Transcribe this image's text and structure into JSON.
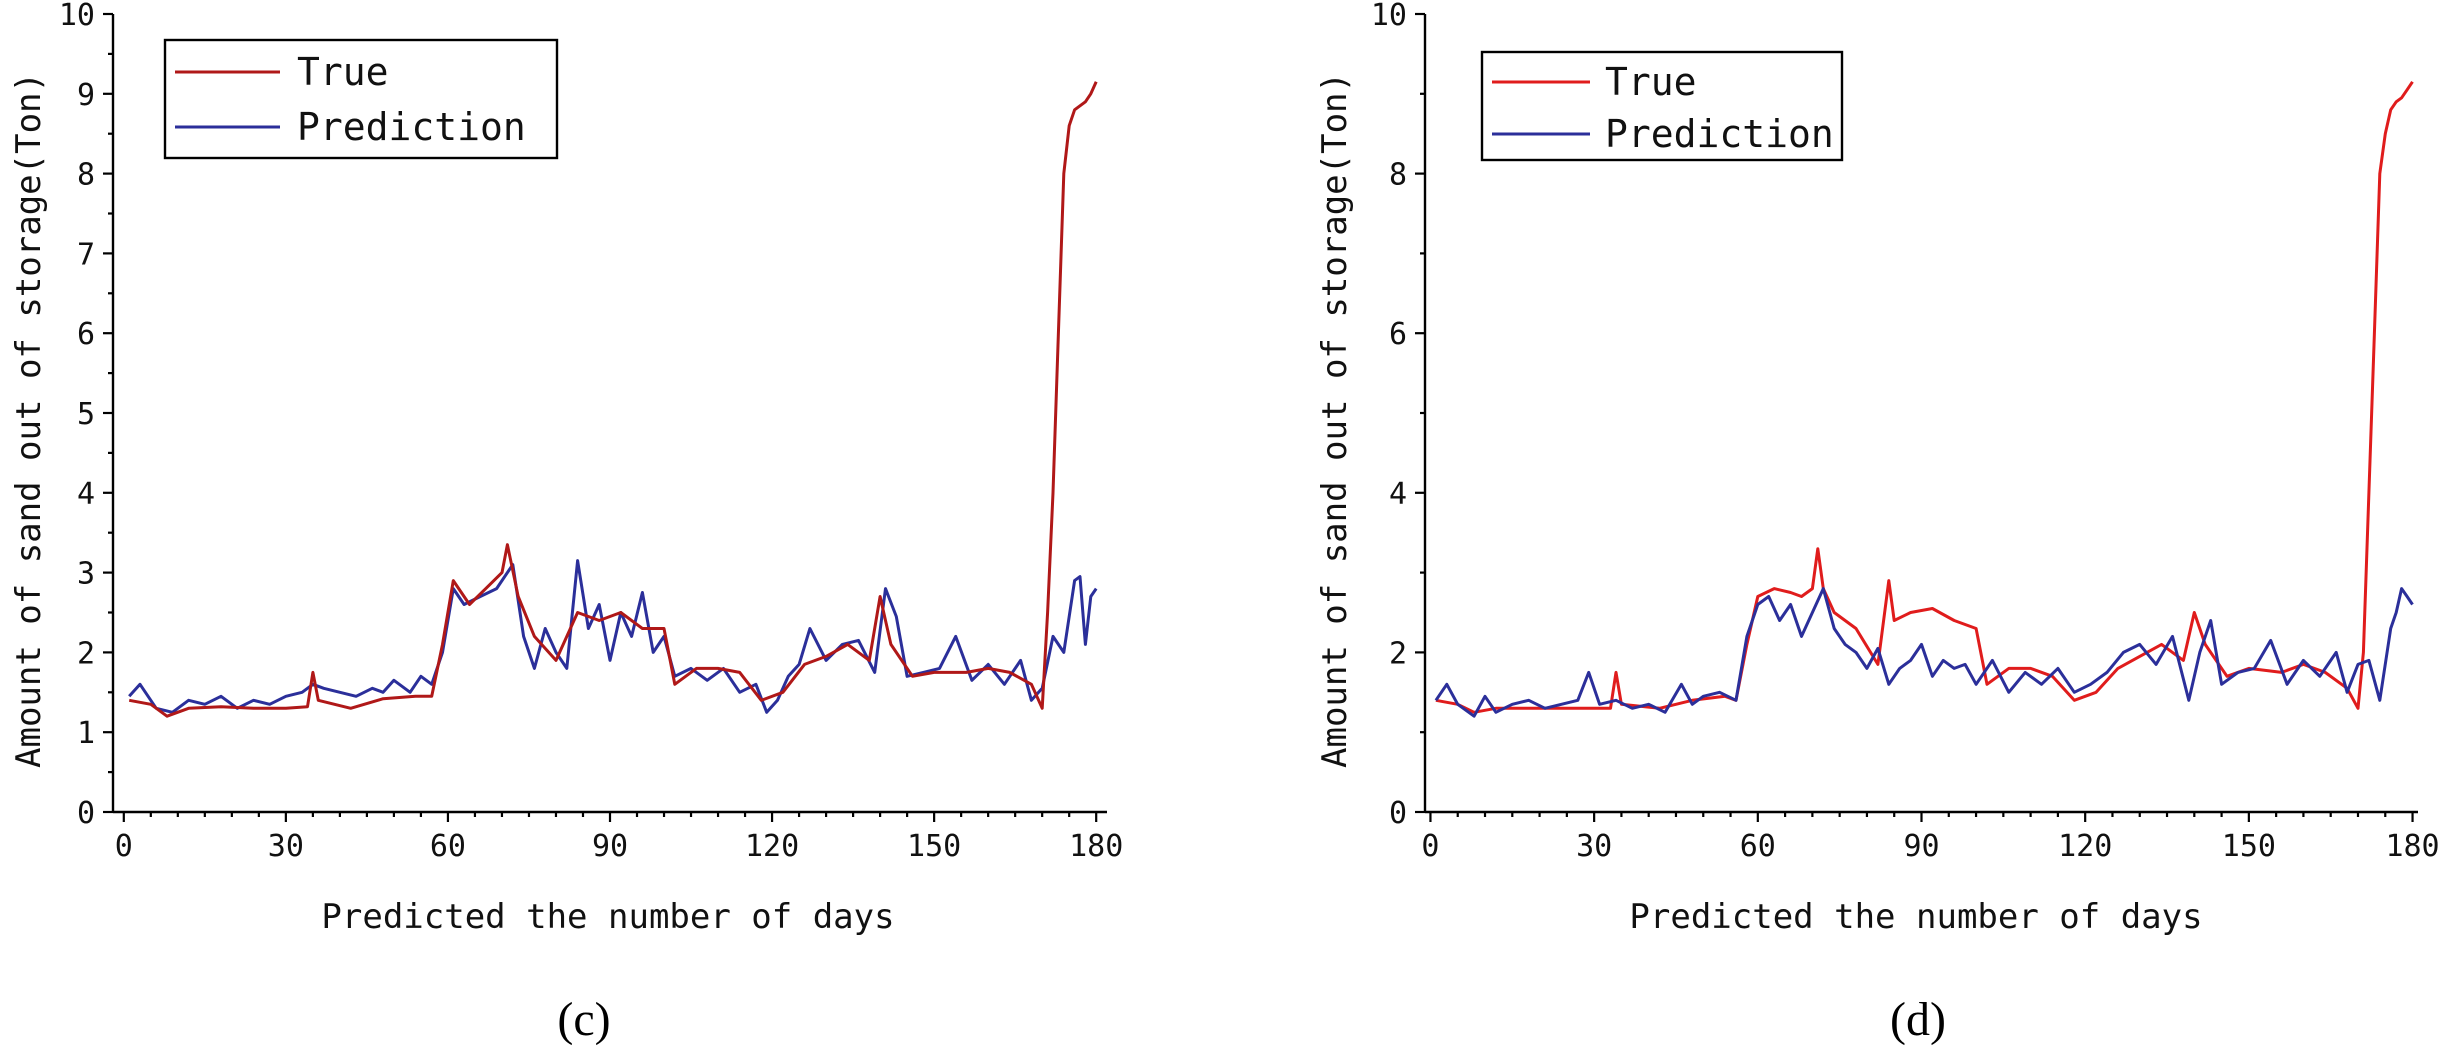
{
  "colors": {
    "true_left": "#b01818",
    "true_right": "#e01c1c",
    "prediction": "#2b2f9a"
  },
  "chart_data": [
    {
      "type": "line",
      "panel_label": "(c)",
      "xlabel": "Predicted the number of days",
      "ylabel": "Amount of sand out of storage(Ton)",
      "xlim": [
        -2,
        182
      ],
      "ylim": [
        0,
        10
      ],
      "xticks": [
        0,
        30,
        60,
        90,
        120,
        150,
        180
      ],
      "yticks": [
        0,
        1,
        2,
        3,
        4,
        5,
        6,
        7,
        8,
        9,
        10
      ],
      "xtick_labels": [
        "0",
        "30",
        "60",
        "90",
        "120",
        "150",
        "180"
      ],
      "ytick_labels": [
        "0",
        "1",
        "2",
        "3",
        "4",
        "5",
        "6",
        "7",
        "8",
        "9",
        "10"
      ],
      "legend": [
        "True",
        "Prediction"
      ],
      "series": [
        {
          "name": "True",
          "x": [
            1,
            5,
            8,
            12,
            18,
            24,
            30,
            34,
            35,
            36,
            42,
            48,
            54,
            57,
            59,
            61,
            64,
            67,
            70,
            71,
            73,
            76,
            80,
            84,
            88,
            92,
            96,
            100,
            102,
            106,
            110,
            114,
            118,
            122,
            126,
            130,
            134,
            138,
            140,
            142,
            146,
            150,
            156,
            160,
            164,
            168,
            170,
            171,
            172,
            174,
            175,
            176,
            177,
            178,
            179,
            180
          ],
          "values": [
            1.4,
            1.35,
            1.2,
            1.3,
            1.32,
            1.3,
            1.3,
            1.32,
            1.75,
            1.4,
            1.3,
            1.42,
            1.45,
            1.45,
            2.1,
            2.9,
            2.6,
            2.8,
            3.0,
            3.35,
            2.7,
            2.2,
            1.9,
            2.5,
            2.4,
            2.5,
            2.3,
            2.3,
            1.6,
            1.8,
            1.8,
            1.75,
            1.4,
            1.5,
            1.85,
            1.95,
            2.1,
            1.9,
            2.7,
            2.1,
            1.7,
            1.75,
            1.75,
            1.8,
            1.75,
            1.6,
            1.3,
            2.5,
            4.0,
            8.0,
            8.6,
            8.8,
            8.85,
            8.9,
            9.0,
            9.15
          ]
        },
        {
          "name": "Prediction",
          "x": [
            1,
            3,
            6,
            9,
            12,
            15,
            18,
            21,
            24,
            27,
            30,
            33,
            35,
            37,
            40,
            43,
            46,
            48,
            50,
            53,
            55,
            57,
            59,
            61,
            63,
            66,
            69,
            72,
            74,
            76,
            78,
            80,
            82,
            84,
            86,
            88,
            90,
            92,
            94,
            96,
            98,
            100,
            102,
            105,
            108,
            111,
            114,
            117,
            119,
            121,
            123,
            125,
            127,
            130,
            133,
            136,
            139,
            141,
            143,
            145,
            148,
            151,
            154,
            157,
            160,
            163,
            166,
            168,
            170,
            172,
            174,
            176,
            177,
            178,
            179,
            180
          ],
          "values": [
            1.45,
            1.6,
            1.3,
            1.25,
            1.4,
            1.35,
            1.45,
            1.3,
            1.4,
            1.35,
            1.45,
            1.5,
            1.6,
            1.55,
            1.5,
            1.45,
            1.55,
            1.5,
            1.65,
            1.5,
            1.7,
            1.6,
            2.0,
            2.8,
            2.6,
            2.7,
            2.8,
            3.1,
            2.2,
            1.8,
            2.3,
            2.0,
            1.8,
            3.15,
            2.3,
            2.6,
            1.9,
            2.5,
            2.2,
            2.75,
            2.0,
            2.2,
            1.7,
            1.8,
            1.65,
            1.8,
            1.5,
            1.6,
            1.25,
            1.4,
            1.7,
            1.85,
            2.3,
            1.9,
            2.1,
            2.15,
            1.75,
            2.8,
            2.45,
            1.7,
            1.75,
            1.8,
            2.2,
            1.65,
            1.85,
            1.6,
            1.9,
            1.4,
            1.55,
            2.2,
            2.0,
            2.9,
            2.95,
            2.1,
            2.7,
            2.8
          ]
        }
      ]
    },
    {
      "type": "line",
      "panel_label": "(d)",
      "xlabel": "Predicted the number of days",
      "ylabel": "Amount of sand out of storage(Ton)",
      "xlim": [
        -1,
        181
      ],
      "ylim": [
        0,
        10
      ],
      "xticks": [
        0,
        30,
        60,
        90,
        120,
        150,
        180
      ],
      "yticks": [
        0,
        2,
        4,
        6,
        8,
        10
      ],
      "xtick_labels": [
        "0",
        "30",
        "60",
        "90",
        "120",
        "150",
        "180"
      ],
      "ytick_labels": [
        "0",
        "2",
        "4",
        "6",
        "8",
        "10"
      ],
      "legend": [
        "True",
        "Prediction"
      ],
      "series": [
        {
          "name": "True",
          "x": [
            1,
            5,
            8,
            12,
            18,
            24,
            30,
            33,
            34,
            35,
            42,
            48,
            54,
            56,
            58,
            60,
            63,
            66,
            68,
            70,
            71,
            72,
            74,
            78,
            82,
            84,
            85,
            88,
            92,
            96,
            100,
            102,
            106,
            110,
            114,
            118,
            122,
            126,
            130,
            134,
            138,
            140,
            142,
            146,
            150,
            156,
            160,
            164,
            168,
            170,
            171,
            172,
            173,
            174,
            175,
            176,
            177,
            178,
            179,
            180
          ],
          "values": [
            1.4,
            1.35,
            1.25,
            1.3,
            1.3,
            1.3,
            1.3,
            1.3,
            1.75,
            1.35,
            1.3,
            1.4,
            1.45,
            1.4,
            2.1,
            2.7,
            2.8,
            2.75,
            2.7,
            2.8,
            3.3,
            2.8,
            2.5,
            2.3,
            1.85,
            2.9,
            2.4,
            2.5,
            2.55,
            2.4,
            2.3,
            1.6,
            1.8,
            1.8,
            1.7,
            1.4,
            1.5,
            1.8,
            1.95,
            2.1,
            1.9,
            2.5,
            2.1,
            1.7,
            1.8,
            1.75,
            1.85,
            1.75,
            1.55,
            1.3,
            2.0,
            4.0,
            6.0,
            8.0,
            8.5,
            8.8,
            8.9,
            8.95,
            9.05,
            9.15
          ]
        },
        {
          "name": "Prediction",
          "x": [
            1,
            3,
            5,
            8,
            10,
            12,
            15,
            18,
            21,
            24,
            27,
            29,
            31,
            34,
            37,
            40,
            43,
            46,
            48,
            50,
            53,
            56,
            58,
            60,
            62,
            64,
            66,
            68,
            70,
            72,
            74,
            76,
            78,
            80,
            82,
            84,
            86,
            88,
            90,
            92,
            94,
            96,
            98,
            100,
            103,
            106,
            109,
            112,
            115,
            118,
            121,
            124,
            127,
            130,
            133,
            136,
            139,
            141,
            143,
            145,
            148,
            151,
            154,
            157,
            160,
            163,
            166,
            168,
            170,
            172,
            174,
            176,
            177,
            178,
            179,
            180
          ],
          "values": [
            1.4,
            1.6,
            1.35,
            1.2,
            1.45,
            1.25,
            1.35,
            1.4,
            1.3,
            1.35,
            1.4,
            1.75,
            1.35,
            1.4,
            1.3,
            1.35,
            1.25,
            1.6,
            1.35,
            1.45,
            1.5,
            1.4,
            2.2,
            2.6,
            2.7,
            2.4,
            2.6,
            2.2,
            2.5,
            2.8,
            2.3,
            2.1,
            2.0,
            1.8,
            2.05,
            1.6,
            1.8,
            1.9,
            2.1,
            1.7,
            1.9,
            1.8,
            1.85,
            1.6,
            1.9,
            1.5,
            1.75,
            1.6,
            1.8,
            1.5,
            1.6,
            1.75,
            2.0,
            2.1,
            1.85,
            2.2,
            1.4,
            2.0,
            2.4,
            1.6,
            1.75,
            1.8,
            2.15,
            1.6,
            1.9,
            1.7,
            2.0,
            1.5,
            1.85,
            1.9,
            1.4,
            2.3,
            2.5,
            2.8,
            2.7,
            2.6
          ]
        }
      ]
    }
  ]
}
